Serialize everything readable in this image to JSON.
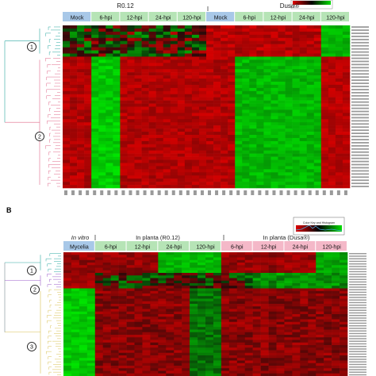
{
  "panel_b_label": "B",
  "chart_data": [
    {
      "type": "heatmap",
      "title": "",
      "group_headers": [
        "R0.12",
        "Dusa®"
      ],
      "column_groups": [
        {
          "label": "Mock",
          "color": "#a8c8e8"
        },
        {
          "label": "6-hpi",
          "color": "#b6e4b6"
        },
        {
          "label": "12-hpi",
          "color": "#b6e4b6"
        },
        {
          "label": "24-hpi",
          "color": "#b6e4b6"
        },
        {
          "label": "120-hpi",
          "color": "#b6e4b6"
        },
        {
          "label": "Mock",
          "color": "#a8c8e8"
        },
        {
          "label": "6-hpi",
          "color": "#b6e4b6"
        },
        {
          "label": "12-hpi",
          "color": "#b6e4b6"
        },
        {
          "label": "24-hpi",
          "color": "#b6e4b6"
        },
        {
          "label": "120-hpi",
          "color": "#b6e4b6"
        }
      ],
      "cluster_labels": [
        "①",
        "②"
      ],
      "color_scale": {
        "low": "#00dd00",
        "mid": "#000000",
        "high": "#dd0000"
      },
      "legend_placement": "top-right"
    },
    {
      "type": "heatmap",
      "title": "",
      "group_headers": [
        "In vitro",
        "In planta (R0.12)",
        "In planta (Dusa®)"
      ],
      "column_groups": [
        {
          "label": "Mycelia",
          "color": "#a8c8e8"
        },
        {
          "label": "6-hpi",
          "color": "#b6e4b6"
        },
        {
          "label": "12-hpi",
          "color": "#b6e4b6"
        },
        {
          "label": "24-hpi",
          "color": "#b6e4b6"
        },
        {
          "label": "120-hpi",
          "color": "#b6e4b6"
        },
        {
          "label": "6-hpi",
          "color": "#f4b8c8"
        },
        {
          "label": "12-hpi",
          "color": "#f4b8c8"
        },
        {
          "label": "24-hpi",
          "color": "#f4b8c8"
        },
        {
          "label": "120-hpi",
          "color": "#f4b8c8"
        }
      ],
      "cluster_labels": [
        "①",
        "②",
        "③"
      ],
      "color_scale": {
        "low": "#00dd00",
        "mid": "#000000",
        "high": "#dd0000"
      },
      "legend_title": "Color Key and Histogram",
      "legend_placement": "top-right"
    }
  ]
}
